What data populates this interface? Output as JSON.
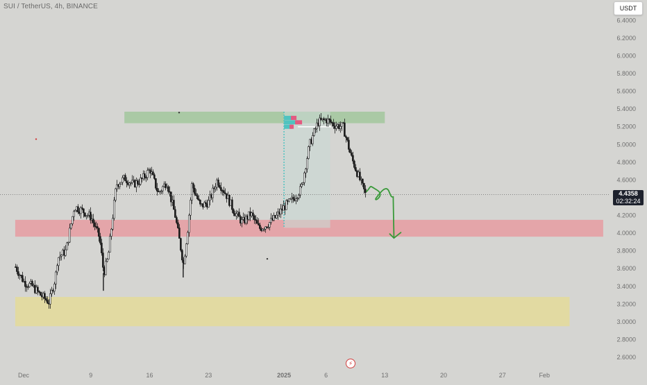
{
  "symbol": {
    "title": "SUI / TetherUS, 4h, BINANCE"
  },
  "currency": {
    "label": "USDT"
  },
  "last_price": {
    "value": "4.4358",
    "countdown": "02:32:24"
  },
  "icons": {
    "flash": "lightning-bolt-icon"
  },
  "colors": {
    "background": "#d5d5d2",
    "candle": "#1a1a1a",
    "resistance_zone": "#a5c8a0",
    "support_zone": "#e6a0a4",
    "demand_zone": "#e3da9c",
    "projection": "#3a9a3a",
    "volume_profile_up": "#4fc3c0",
    "volume_profile_down": "#e35a80"
  },
  "chart_data": {
    "type": "candlestick",
    "y_axis": {
      "range": [
        2.5,
        6.6
      ],
      "ticks": [
        "6.4000",
        "6.2000",
        "6.0000",
        "5.8000",
        "5.6000",
        "5.4000",
        "5.2000",
        "5.0000",
        "4.8000",
        "4.6000",
        "4.4000",
        "4.2000",
        "4.0000",
        "3.8000",
        "3.6000",
        "3.4000",
        "3.2000",
        "3.0000",
        "2.8000",
        "2.6000"
      ]
    },
    "x_axis": {
      "ticks": [
        {
          "label": "Dec",
          "date": "2024-12-01"
        },
        {
          "label": "9",
          "date": "2024-12-09"
        },
        {
          "label": "16",
          "date": "2024-12-16"
        },
        {
          "label": "23",
          "date": "2024-12-23"
        },
        {
          "label": "2025",
          "date": "2025-01-01"
        },
        {
          "label": "6",
          "date": "2025-01-06"
        },
        {
          "label": "13",
          "date": "2025-01-13"
        },
        {
          "label": "20",
          "date": "2025-01-20"
        },
        {
          "label": "27",
          "date": "2025-01-27"
        },
        {
          "label": "Feb",
          "date": "2025-02-01"
        }
      ]
    },
    "path_points": [
      [
        "2024-11-30",
        3.62
      ],
      [
        "2024-12-01",
        3.45
      ],
      [
        "2024-12-02",
        3.4
      ],
      [
        "2024-12-03",
        3.3
      ],
      [
        "2024-12-04",
        3.22
      ],
      [
        "2024-12-04T18",
        3.5
      ],
      [
        "2024-12-05",
        3.72
      ],
      [
        "2024-12-06",
        3.8
      ],
      [
        "2024-12-07",
        4.3
      ],
      [
        "2024-12-08",
        4.25
      ],
      [
        "2024-12-09",
        4.18
      ],
      [
        "2024-12-10",
        3.95
      ],
      [
        "2024-12-10T12",
        3.55
      ],
      [
        "2024-12-11",
        3.72
      ],
      [
        "2024-12-12",
        4.55
      ],
      [
        "2024-12-13",
        4.62
      ],
      [
        "2024-12-14",
        4.55
      ],
      [
        "2024-12-15",
        4.6
      ],
      [
        "2024-12-16",
        4.72
      ],
      [
        "2024-12-17",
        4.45
      ],
      [
        "2024-12-18",
        4.58
      ],
      [
        "2024-12-19",
        4.2
      ],
      [
        "2024-12-20",
        3.65
      ],
      [
        "2024-12-20T12",
        4.05
      ],
      [
        "2024-12-21",
        4.55
      ],
      [
        "2024-12-22",
        4.3
      ],
      [
        "2024-12-23",
        4.35
      ],
      [
        "2024-12-24",
        4.6
      ],
      [
        "2024-12-25",
        4.45
      ],
      [
        "2024-12-26",
        4.25
      ],
      [
        "2024-12-27",
        4.12
      ],
      [
        "2024-12-28",
        4.22
      ],
      [
        "2024-12-29",
        4.05
      ],
      [
        "2024-12-30",
        4.1
      ],
      [
        "2024-12-31",
        4.18
      ],
      [
        "2025-01-01",
        4.3
      ],
      [
        "2025-01-02",
        4.38
      ],
      [
        "2025-01-03",
        4.5
      ],
      [
        "2025-01-04",
        5.0
      ],
      [
        "2025-01-05",
        5.25
      ],
      [
        "2025-01-06",
        5.28
      ],
      [
        "2025-01-07",
        5.22
      ],
      [
        "2025-01-08",
        5.2
      ],
      [
        "2025-01-09",
        4.85
      ],
      [
        "2025-01-10",
        4.6
      ],
      [
        "2025-01-10T16",
        4.4358
      ]
    ],
    "zones": [
      {
        "name": "resistance",
        "top": 5.37,
        "bottom": 5.24,
        "from": "2024-12-13",
        "to": "2025-01-13"
      },
      {
        "name": "support",
        "top": 4.15,
        "bottom": 3.96,
        "from": "2024-11-30",
        "to": "2025-02-08"
      },
      {
        "name": "demand",
        "top": 3.28,
        "bottom": 2.95,
        "from": "2024-11-30",
        "to": "2025-02-04"
      }
    ],
    "forecast": [
      [
        "2025-01-10T20",
        4.47
      ],
      [
        "2025-01-12",
        4.4
      ],
      [
        "2025-01-13T12",
        4.47
      ],
      [
        "2025-01-14",
        4.41
      ],
      [
        "2025-01-14T06",
        3.96
      ]
    ]
  }
}
